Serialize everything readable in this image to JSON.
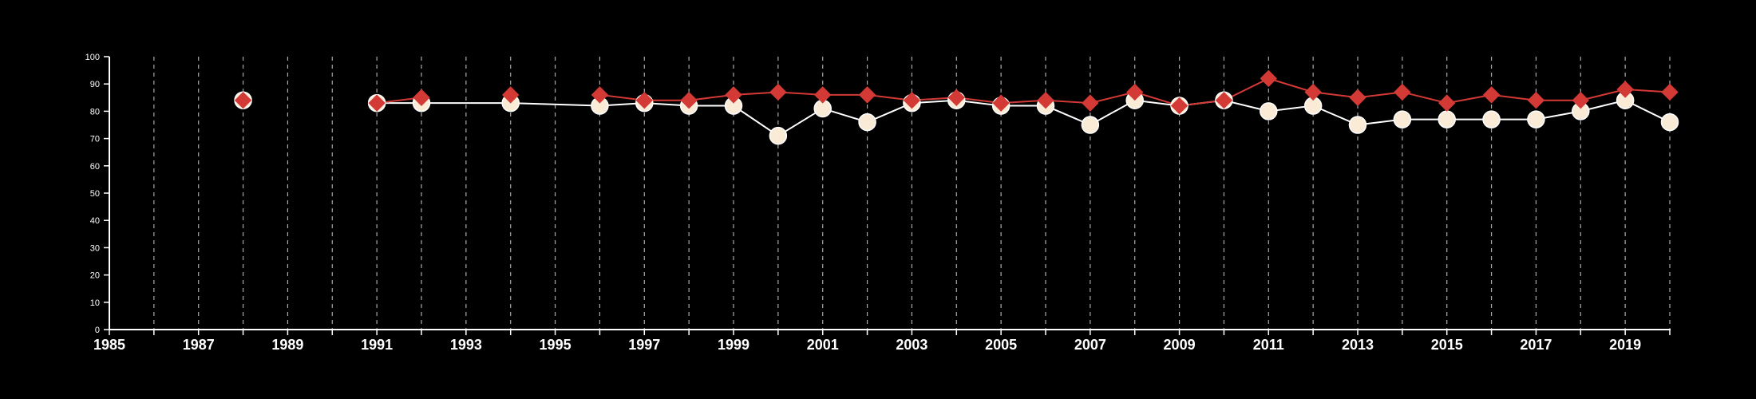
{
  "colors": {
    "background": "#000000",
    "axis": "#ffffff",
    "grid": "#aaaaaa",
    "series_white": "#ffffff",
    "series_white_marker": "#faebd7",
    "series_red": "#d43a35"
  },
  "chart_data": {
    "type": "line",
    "title": "",
    "xlabel": "",
    "ylabel": "",
    "xlim": [
      1985,
      2020
    ],
    "ylim": [
      0,
      100
    ],
    "x_ticks": [
      1985,
      1987,
      1989,
      1991,
      1993,
      1995,
      1997,
      1999,
      2001,
      2003,
      2005,
      2007,
      2009,
      2011,
      2013,
      2015,
      2017,
      2019
    ],
    "y_ticks": [
      0,
      10,
      20,
      30,
      40,
      50,
      60,
      70,
      80,
      90,
      100
    ],
    "grid": "vertical dashed lines at every year from 1986 to 2020",
    "series": [
      {
        "marker": "circle",
        "color": "#ffffff",
        "points": [
          {
            "x": 1988,
            "y": 84
          },
          {
            "x": 1991,
            "y": 83
          },
          {
            "x": 1992,
            "y": 83
          },
          {
            "x": 1994,
            "y": 83
          },
          {
            "x": 1996,
            "y": 82
          },
          {
            "x": 1997,
            "y": 83
          },
          {
            "x": 1998,
            "y": 82
          },
          {
            "x": 1999,
            "y": 82
          },
          {
            "x": 2000,
            "y": 71
          },
          {
            "x": 2001,
            "y": 81
          },
          {
            "x": 2002,
            "y": 76
          },
          {
            "x": 2003,
            "y": 83
          },
          {
            "x": 2004,
            "y": 84
          },
          {
            "x": 2005,
            "y": 82
          },
          {
            "x": 2006,
            "y": 82
          },
          {
            "x": 2007,
            "y": 75
          },
          {
            "x": 2008,
            "y": 84
          },
          {
            "x": 2009,
            "y": 82
          },
          {
            "x": 2010,
            "y": 84
          },
          {
            "x": 2011,
            "y": 80
          },
          {
            "x": 2012,
            "y": 82
          },
          {
            "x": 2013,
            "y": 75
          },
          {
            "x": 2014,
            "y": 77
          },
          {
            "x": 2015,
            "y": 77
          },
          {
            "x": 2016,
            "y": 77
          },
          {
            "x": 2017,
            "y": 77
          },
          {
            "x": 2018,
            "y": 80
          },
          {
            "x": 2019,
            "y": 84
          },
          {
            "x": 2020,
            "y": 76
          }
        ]
      },
      {
        "marker": "diamond",
        "color": "#d43a35",
        "points": [
          {
            "x": 1988,
            "y": 84
          },
          {
            "x": 1991,
            "y": 83
          },
          {
            "x": 1992,
            "y": 85
          },
          {
            "x": 1994,
            "y": 86
          },
          {
            "x": 1996,
            "y": 86
          },
          {
            "x": 1997,
            "y": 84
          },
          {
            "x": 1998,
            "y": 84
          },
          {
            "x": 1999,
            "y": 86
          },
          {
            "x": 2000,
            "y": 87
          },
          {
            "x": 2001,
            "y": 86
          },
          {
            "x": 2002,
            "y": 86
          },
          {
            "x": 2003,
            "y": 84
          },
          {
            "x": 2004,
            "y": 85
          },
          {
            "x": 2005,
            "y": 83
          },
          {
            "x": 2006,
            "y": 84
          },
          {
            "x": 2007,
            "y": 83
          },
          {
            "x": 2008,
            "y": 87
          },
          {
            "x": 2009,
            "y": 82
          },
          {
            "x": 2010,
            "y": 84
          },
          {
            "x": 2011,
            "y": 92
          },
          {
            "x": 2012,
            "y": 87
          },
          {
            "x": 2013,
            "y": 85
          },
          {
            "x": 2014,
            "y": 87
          },
          {
            "x": 2015,
            "y": 83
          },
          {
            "x": 2016,
            "y": 86
          },
          {
            "x": 2017,
            "y": 84
          },
          {
            "x": 2018,
            "y": 84
          },
          {
            "x": 2019,
            "y": 88
          },
          {
            "x": 2020,
            "y": 87
          }
        ]
      }
    ],
    "segments_note": "white series breaks after 1988; red series breaks after 1988 and after 1992"
  }
}
